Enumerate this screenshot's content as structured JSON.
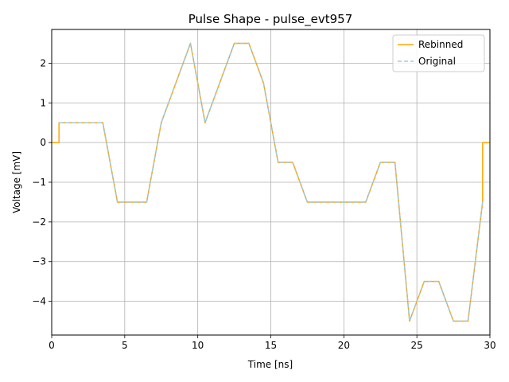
{
  "chart_data": {
    "type": "line",
    "title": "Pulse Shape - pulse_evt957",
    "xlabel": "Time [ns]",
    "ylabel": "Voltage [mV]",
    "xlim": [
      0,
      30
    ],
    "ylim": [
      -4.85,
      2.85
    ],
    "grid": true,
    "legend_position": "upper right",
    "xticks": [
      0,
      5,
      10,
      15,
      20,
      25,
      30
    ],
    "xtick_labels": [
      "0",
      "5",
      "10",
      "15",
      "20",
      "25",
      "30"
    ],
    "yticks": [
      -4,
      -3,
      -2,
      -1,
      0,
      1,
      2
    ],
    "ytick_labels": [
      "−4",
      "−3",
      "−2",
      "−1",
      "0",
      "1",
      "2"
    ],
    "series": [
      {
        "name": "Rebinned",
        "color": "#ffa500",
        "style": "solid",
        "x": [
          0,
          0.5,
          0.5,
          1.5,
          2.5,
          3.5,
          4.5,
          5.5,
          6.5,
          7.5,
          8.5,
          9.5,
          10.5,
          11.5,
          12.5,
          13.5,
          14.5,
          15.5,
          16.5,
          17.5,
          18.5,
          19.5,
          20.5,
          21.5,
          22.5,
          23.5,
          24.5,
          25.5,
          26.5,
          27.5,
          28.5,
          29.5,
          29.5,
          30
        ],
        "y": [
          0,
          0,
          0.5,
          0.5,
          0.5,
          0.5,
          -1.5,
          -1.5,
          -1.5,
          0.5,
          1.5,
          2.5,
          0.5,
          1.5,
          2.5,
          2.5,
          1.5,
          -0.5,
          -0.5,
          -1.5,
          -1.5,
          -1.5,
          -1.5,
          -1.5,
          -0.5,
          -0.5,
          -4.5,
          -3.5,
          -3.5,
          -4.5,
          -4.5,
          -1.5,
          0,
          0
        ]
      },
      {
        "name": "Original",
        "color": "#9ecae1",
        "style": "dashed",
        "x": [
          0.5,
          1.5,
          2.5,
          3.5,
          4.5,
          5.5,
          6.5,
          7.5,
          8.5,
          9.5,
          10.5,
          11.5,
          12.5,
          13.5,
          14.5,
          15.5,
          16.5,
          17.5,
          18.5,
          19.5,
          20.5,
          21.5,
          22.5,
          23.5,
          24.5,
          25.5,
          26.5,
          27.5,
          28.5,
          29.5
        ],
        "y": [
          0.5,
          0.5,
          0.5,
          0.5,
          -1.5,
          -1.5,
          -1.5,
          0.5,
          1.5,
          2.5,
          0.5,
          1.5,
          2.5,
          2.5,
          1.5,
          -0.5,
          -0.5,
          -1.5,
          -1.5,
          -1.5,
          -1.5,
          -1.5,
          -0.5,
          -0.5,
          -4.5,
          -3.5,
          -3.5,
          -4.5,
          -4.5,
          -1.5
        ]
      }
    ]
  }
}
